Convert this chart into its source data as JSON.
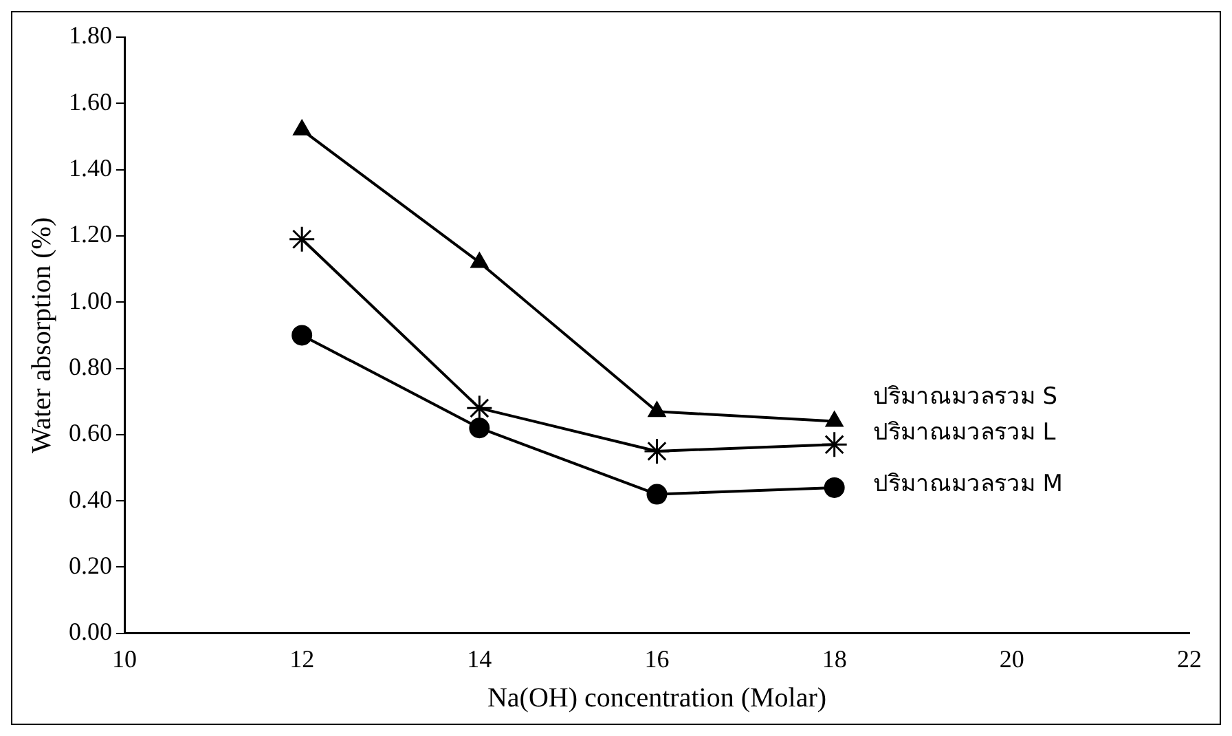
{
  "chart_data": {
    "type": "line",
    "xlabel": "Na(OH) concentration (Molar)",
    "ylabel": "Water absorption (%)",
    "x": [
      12,
      14,
      16,
      18
    ],
    "series": [
      {
        "name": "ปริมาณมวลรวม S",
        "color": "#000000",
        "marker": "triangle",
        "values": [
          1.52,
          1.12,
          0.67,
          0.64
        ]
      },
      {
        "name": "ปริมาณมวลรวม L",
        "color": "#000000",
        "marker": "cross",
        "values": [
          1.19,
          0.68,
          0.55,
          0.57
        ]
      },
      {
        "name": "ปริมาณมวลรวม M",
        "color": "#000000",
        "marker": "circle",
        "values": [
          0.9,
          0.62,
          0.42,
          0.44
        ]
      }
    ],
    "xlim": [
      10,
      22
    ],
    "xticks": [
      10,
      12,
      14,
      16,
      18,
      20,
      22
    ],
    "ylim": [
      0,
      1.8
    ],
    "yticks": [
      {
        "value": 0,
        "label": "0.00"
      },
      {
        "value": 0.2,
        "label": "0.20"
      },
      {
        "value": 0.4,
        "label": "0.40"
      },
      {
        "value": 0.6,
        "label": "0.60"
      },
      {
        "value": 0.8,
        "label": "0.80"
      },
      {
        "value": 1.0,
        "label": "1.00"
      },
      {
        "value": 1.2,
        "label": "1.20"
      },
      {
        "value": 1.4,
        "label": "1.40"
      },
      {
        "value": 1.6,
        "label": "1.60"
      },
      {
        "value": 1.8,
        "label": "1.80"
      }
    ],
    "grid": false,
    "legend": false,
    "line_style": "solid"
  }
}
